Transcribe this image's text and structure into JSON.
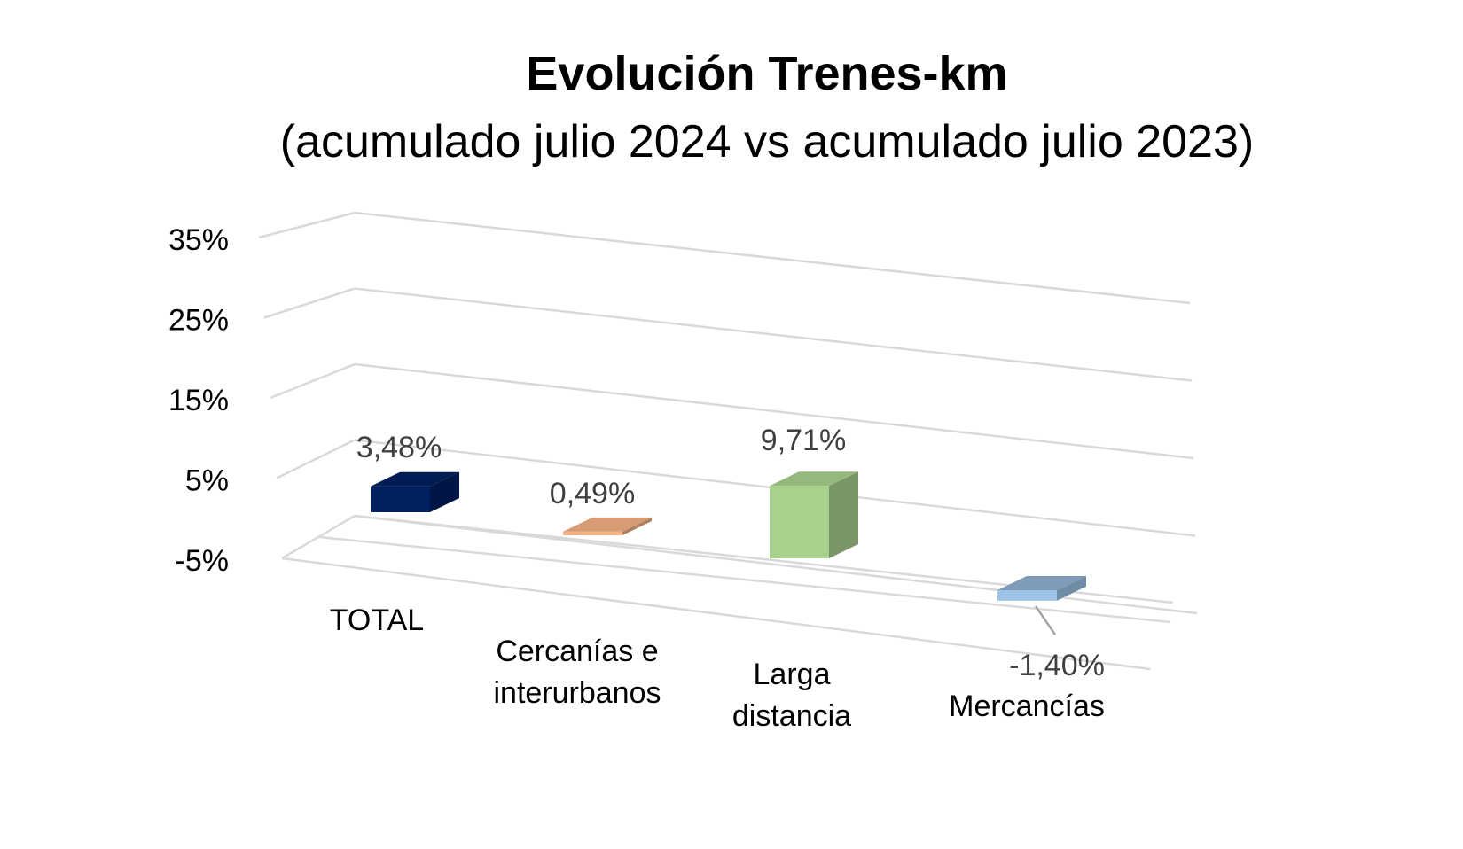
{
  "chart_data": {
    "type": "bar",
    "title": "Evolución Trenes-km",
    "subtitle": "(acumulado julio 2024 vs acumulado julio 2023)",
    "xlabel": "",
    "ylabel": "",
    "ylim": [
      -5,
      35
    ],
    "y_ticks": [
      -5,
      5,
      15,
      25,
      35
    ],
    "y_tick_labels": [
      "-5%",
      "5%",
      "15%",
      "25%",
      "35%"
    ],
    "grid": true,
    "categories": [
      [
        "TOTAL"
      ],
      [
        "Cercanías e",
        "interurbanos"
      ],
      [
        "Larga",
        "distancia"
      ],
      [
        "Mercancías"
      ]
    ],
    "values": [
      3.48,
      0.49,
      9.71,
      -1.4
    ],
    "data_labels": [
      "3,48%",
      "0,49%",
      "9,71%",
      "-1,40%"
    ],
    "colors": [
      "#002060",
      "#f4b183",
      "#a9d18e",
      "#9dc3e6"
    ]
  }
}
